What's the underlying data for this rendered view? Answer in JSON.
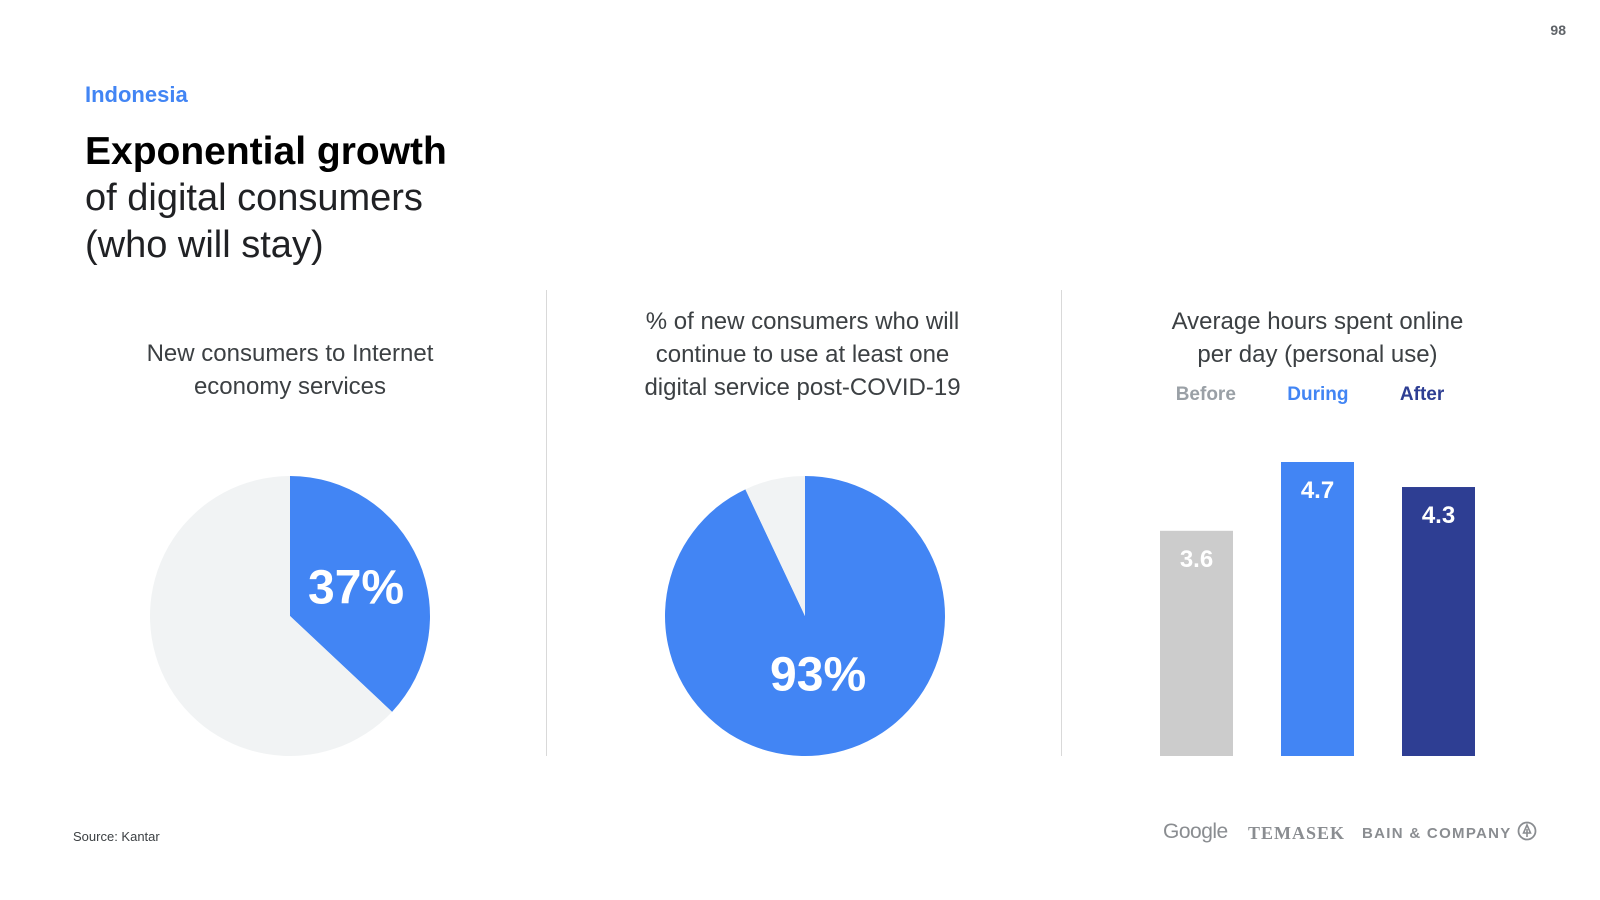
{
  "page_number": "98",
  "header": {
    "country": "Indonesia",
    "title_bold": "Exponential growth",
    "title_line2": "of digital consumers",
    "title_line3": "(who will stay)"
  },
  "chart_data": [
    {
      "type": "pie",
      "title_lines": [
        "New consumers to Internet",
        "economy services"
      ],
      "slices": [
        {
          "name": "",
          "value": 37,
          "label": "37%",
          "color": "#4285f4"
        },
        {
          "name": "",
          "value": 63,
          "label": "",
          "color": "#f1f3f4"
        }
      ]
    },
    {
      "type": "pie",
      "title_lines": [
        "% of new consumers who will",
        "continue to use at least one",
        "digital service post-COVID-19"
      ],
      "slices": [
        {
          "name": "",
          "value": 93,
          "label": "93%",
          "color": "#4285f4"
        },
        {
          "name": "",
          "value": 7,
          "label": "",
          "color": "#f1f3f4"
        }
      ]
    },
    {
      "type": "bar",
      "title_lines": [
        "Average hours spent online",
        "per day (personal use)"
      ],
      "categories": [
        "Before",
        "During",
        "After"
      ],
      "values": [
        3.6,
        4.7,
        4.3
      ],
      "value_labels": [
        "3.6",
        "4.7",
        "4.3"
      ],
      "colors": [
        "#cccccc",
        "#4285f4",
        "#2e3e93"
      ],
      "legend_colors": [
        "#9aa0a6",
        "#4285f4",
        "#2e3e93"
      ],
      "legend_position": "top",
      "ylim": [
        0,
        4.7
      ]
    }
  ],
  "footer": {
    "source": "Source: Kantar",
    "logos": [
      "Google",
      "TEMASEK",
      "BAIN & COMPANY"
    ]
  }
}
